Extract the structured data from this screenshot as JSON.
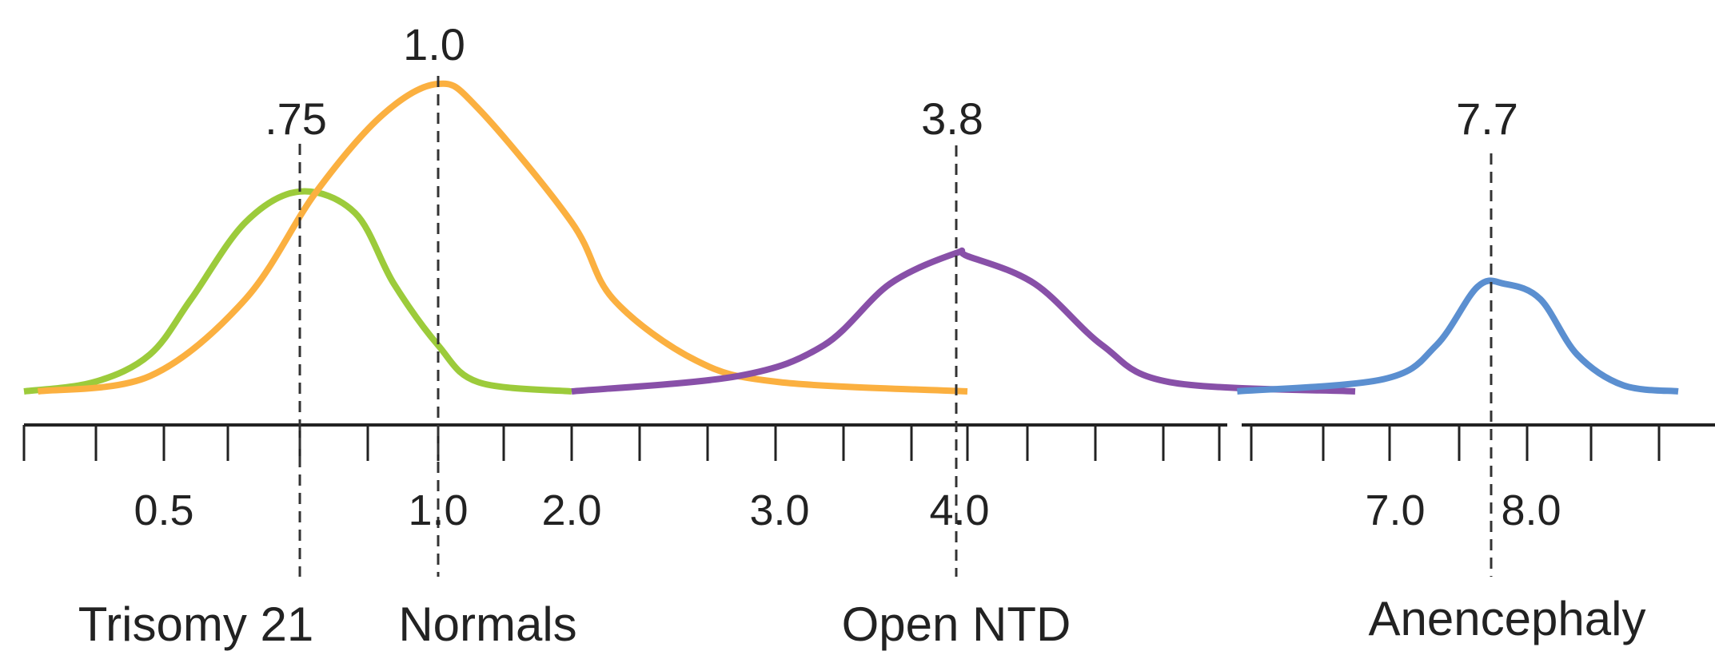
{
  "chart_data": {
    "type": "line",
    "title": "",
    "xlabel": "",
    "ylabel": "",
    "axis": {
      "broken": true,
      "tick_labels": [
        {
          "text": "0.5",
          "value": 0.5
        },
        {
          "text": "1.0",
          "value": 1.0
        },
        {
          "text": "2.0",
          "value": 2.0
        },
        {
          "text": "3.0",
          "value": 3.0
        },
        {
          "text": "4.0",
          "value": 4.0
        },
        {
          "text": "7.0",
          "value": 7.0
        },
        {
          "text": "8.0",
          "value": 8.0
        }
      ]
    },
    "series": [
      {
        "name": "Trisomy 21",
        "color": "#9ccb3b",
        "median": 0.75,
        "median_label": ".75",
        "points": [
          [
            0.0,
            0.0
          ],
          [
            0.25,
            0.03
          ],
          [
            0.45,
            0.12
          ],
          [
            0.55,
            0.3
          ],
          [
            0.65,
            0.55
          ],
          [
            0.75,
            0.65
          ],
          [
            0.85,
            0.58
          ],
          [
            0.92,
            0.35
          ],
          [
            1.0,
            0.15
          ],
          [
            1.3,
            0.03
          ],
          [
            2.0,
            0.0
          ]
        ]
      },
      {
        "name": "Normals",
        "color": "#fbb040",
        "median": 1.0,
        "median_label": "1.0",
        "points": [
          [
            0.05,
            0.0
          ],
          [
            0.45,
            0.05
          ],
          [
            0.65,
            0.3
          ],
          [
            0.78,
            0.65
          ],
          [
            0.9,
            0.9
          ],
          [
            1.0,
            1.0
          ],
          [
            1.3,
            0.92
          ],
          [
            2.0,
            0.55
          ],
          [
            2.2,
            0.3
          ],
          [
            2.6,
            0.1
          ],
          [
            3.0,
            0.03
          ],
          [
            4.0,
            0.0
          ]
        ]
      },
      {
        "name": "Open NTD",
        "color": "#8850a8",
        "median": 3.8,
        "median_label": "3.8",
        "points": [
          [
            2.0,
            0.0
          ],
          [
            2.8,
            0.05
          ],
          [
            3.2,
            0.15
          ],
          [
            3.5,
            0.35
          ],
          [
            3.8,
            0.45
          ],
          [
            4.0,
            0.44
          ],
          [
            4.4,
            0.35
          ],
          [
            4.8,
            0.15
          ],
          [
            5.2,
            0.03
          ],
          [
            6.3,
            0.0
          ]
        ]
      },
      {
        "name": "Anencephaly",
        "color": "#5b8fd0",
        "median": 7.7,
        "median_label": "7.7",
        "points": [
          [
            5.6,
            0.0
          ],
          [
            6.8,
            0.04
          ],
          [
            7.3,
            0.15
          ],
          [
            7.6,
            0.34
          ],
          [
            7.8,
            0.35
          ],
          [
            8.05,
            0.3
          ],
          [
            8.25,
            0.12
          ],
          [
            8.5,
            0.02
          ],
          [
            8.8,
            0.0
          ]
        ]
      }
    ]
  }
}
